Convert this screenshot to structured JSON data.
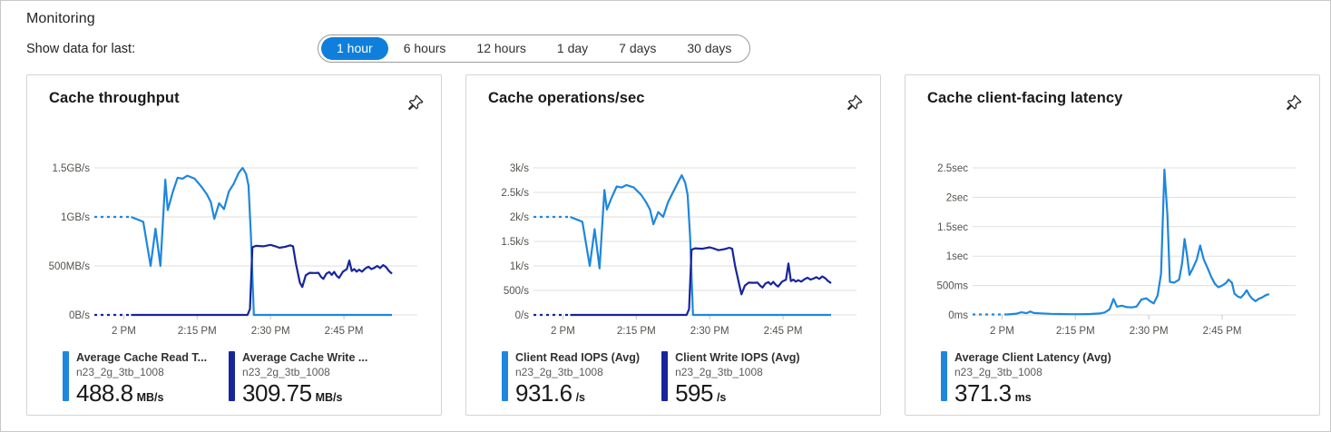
{
  "header": {
    "title": "Monitoring",
    "time_label": "Show data for last:"
  },
  "time_selector": {
    "options": [
      "1 hour",
      "6 hours",
      "12 hours",
      "1 day",
      "7 days",
      "30 days"
    ],
    "selected_index": 0
  },
  "colors": {
    "accent": "#0f7fdb",
    "series_light": "#1e87dd",
    "series_dark": "#17259c",
    "grid": "#e1dfdd",
    "tick": "#c8c6c4",
    "axis_text": "#55524e"
  },
  "resource_name": "n23_2g_3tb_1008",
  "chart_data": [
    {
      "type": "line",
      "title": "Cache throughput",
      "y_unit": "MB/s",
      "y_max": 1500,
      "x_range": [
        -6,
        60
      ],
      "y_ticks": [
        {
          "v": 1500,
          "label": "1.5GB/s"
        },
        {
          "v": 1000,
          "label": "1GB/s"
        },
        {
          "v": 500,
          "label": "500MB/s"
        },
        {
          "v": 0,
          "label": "0B/s"
        }
      ],
      "x_ticks": [
        {
          "t": 0,
          "label": "2 PM"
        },
        {
          "t": 15,
          "label": "2:15 PM"
        },
        {
          "t": 30,
          "label": "2:30 PM"
        },
        {
          "t": 45,
          "label": "2:45 PM"
        }
      ],
      "series": [
        {
          "name": "Average Cache Read T...",
          "color": "light",
          "dash_points": [
            [
              -6,
              1000
            ],
            [
              1.5,
              1000
            ]
          ],
          "points": [
            [
              1.5,
              1000
            ],
            [
              4,
              950
            ],
            [
              5.5,
              500
            ],
            [
              6.5,
              880
            ],
            [
              7.5,
              500
            ],
            [
              8.5,
              1380
            ],
            [
              9,
              1070
            ],
            [
              10,
              1250
            ],
            [
              11,
              1400
            ],
            [
              12,
              1390
            ],
            [
              13,
              1420
            ],
            [
              14.5,
              1390
            ],
            [
              16,
              1300
            ],
            [
              17,
              1230
            ],
            [
              17.8,
              1150
            ],
            [
              18.5,
              980
            ],
            [
              19.5,
              1140
            ],
            [
              20.5,
              1080
            ],
            [
              21.5,
              1260
            ],
            [
              22.5,
              1340
            ],
            [
              23.5,
              1450
            ],
            [
              24.3,
              1500
            ],
            [
              25,
              1440
            ],
            [
              25.5,
              1320
            ],
            [
              26,
              800
            ],
            [
              26.6,
              0
            ],
            [
              54.8,
              0
            ]
          ]
        },
        {
          "name": "Average Cache Write ...",
          "color": "dark",
          "dash_points": [
            [
              -6,
              0
            ],
            [
              1.5,
              0
            ]
          ],
          "points": [
            [
              1.5,
              0
            ],
            [
              25.3,
              0
            ],
            [
              25.8,
              60
            ],
            [
              26.3,
              690
            ],
            [
              27,
              705
            ],
            [
              28.5,
              700
            ],
            [
              30,
              715
            ],
            [
              31,
              700
            ],
            [
              31.8,
              685
            ],
            [
              33,
              695
            ],
            [
              34,
              710
            ],
            [
              34.6,
              700
            ],
            [
              35.2,
              520
            ],
            [
              36,
              330
            ],
            [
              36.5,
              285
            ],
            [
              37.2,
              405
            ],
            [
              38,
              430
            ],
            [
              39,
              428
            ],
            [
              39.8,
              430
            ],
            [
              40.3,
              390
            ],
            [
              40.8,
              368
            ],
            [
              41.4,
              420
            ],
            [
              42,
              438
            ],
            [
              42.5,
              408
            ],
            [
              43,
              440
            ],
            [
              43.5,
              400
            ],
            [
              44,
              378
            ],
            [
              44.8,
              442
            ],
            [
              45.6,
              468
            ],
            [
              46.1,
              555
            ],
            [
              46.6,
              448
            ],
            [
              47.1,
              468
            ],
            [
              47.6,
              442
            ],
            [
              48.1,
              462
            ],
            [
              48.7,
              442
            ],
            [
              49.4,
              475
            ],
            [
              50,
              492
            ],
            [
              50.6,
              468
            ],
            [
              51.2,
              480
            ],
            [
              51.8,
              500
            ],
            [
              52.4,
              478
            ],
            [
              53,
              508
            ],
            [
              53.6,
              488
            ],
            [
              54.2,
              448
            ],
            [
              54.8,
              420
            ]
          ]
        }
      ],
      "legend": [
        {
          "metric": "Average Cache Read T...",
          "resource": "n23_2g_3tb_1008",
          "value": "488.8",
          "unit": "MB/s",
          "color": "light"
        },
        {
          "metric": "Average Cache Write ...",
          "resource": "n23_2g_3tb_1008",
          "value": "309.75",
          "unit": "MB/s",
          "color": "dark"
        }
      ]
    },
    {
      "type": "line",
      "title": "Cache operations/sec",
      "y_unit": "/s",
      "y_max": 3000,
      "x_range": [
        -6,
        60
      ],
      "y_ticks": [
        {
          "v": 3000,
          "label": "3k/s"
        },
        {
          "v": 2500,
          "label": "2.5k/s"
        },
        {
          "v": 2000,
          "label": "2k/s"
        },
        {
          "v": 1500,
          "label": "1.5k/s"
        },
        {
          "v": 1000,
          "label": "1k/s"
        },
        {
          "v": 500,
          "label": "500/s"
        },
        {
          "v": 0,
          "label": "0/s"
        }
      ],
      "x_ticks": [
        {
          "t": 0,
          "label": "2 PM"
        },
        {
          "t": 15,
          "label": "2:15 PM"
        },
        {
          "t": 30,
          "label": "2:30 PM"
        },
        {
          "t": 45,
          "label": "2:45 PM"
        }
      ],
      "series": [
        {
          "name": "Client Read IOPS (Avg)",
          "color": "light",
          "dash_points": [
            [
              -6,
              2000
            ],
            [
              1.5,
              2000
            ]
          ],
          "points": [
            [
              1.5,
              2000
            ],
            [
              4,
              1900
            ],
            [
              5.5,
              1000
            ],
            [
              6.5,
              1750
            ],
            [
              7.5,
              950
            ],
            [
              8.5,
              2550
            ],
            [
              9,
              2150
            ],
            [
              10,
              2400
            ],
            [
              11,
              2620
            ],
            [
              12,
              2600
            ],
            [
              13,
              2650
            ],
            [
              14.5,
              2600
            ],
            [
              16,
              2450
            ],
            [
              17,
              2300
            ],
            [
              17.8,
              2150
            ],
            [
              18.5,
              1850
            ],
            [
              19.5,
              2100
            ],
            [
              20.5,
              2000
            ],
            [
              21.5,
              2300
            ],
            [
              22.5,
              2500
            ],
            [
              23.5,
              2700
            ],
            [
              24.3,
              2850
            ],
            [
              25,
              2700
            ],
            [
              25.5,
              2450
            ],
            [
              26,
              1600
            ],
            [
              26.6,
              0
            ],
            [
              54.8,
              0
            ]
          ]
        },
        {
          "name": "Client Write IOPS (Avg)",
          "color": "dark",
          "dash_points": [
            [
              -6,
              0
            ],
            [
              1.5,
              0
            ]
          ],
          "points": [
            [
              1.5,
              0
            ],
            [
              25.3,
              0
            ],
            [
              25.8,
              120
            ],
            [
              26.3,
              1330
            ],
            [
              27,
              1360
            ],
            [
              28.5,
              1350
            ],
            [
              30,
              1380
            ],
            [
              31,
              1350
            ],
            [
              31.8,
              1320
            ],
            [
              33,
              1340
            ],
            [
              34,
              1370
            ],
            [
              34.6,
              1350
            ],
            [
              35.2,
              1000
            ],
            [
              36,
              640
            ],
            [
              36.5,
              420
            ],
            [
              37.2,
              600
            ],
            [
              38,
              660
            ],
            [
              39,
              655
            ],
            [
              39.8,
              660
            ],
            [
              40.3,
              600
            ],
            [
              40.8,
              560
            ],
            [
              41.4,
              640
            ],
            [
              42,
              670
            ],
            [
              42.5,
              620
            ],
            [
              43,
              675
            ],
            [
              43.5,
              615
            ],
            [
              44,
              580
            ],
            [
              44.8,
              680
            ],
            [
              45.6,
              720
            ],
            [
              46.1,
              1050
            ],
            [
              46.6,
              690
            ],
            [
              47.1,
              720
            ],
            [
              47.6,
              680
            ],
            [
              48.1,
              710
            ],
            [
              48.7,
              680
            ],
            [
              49.4,
              730
            ],
            [
              50,
              760
            ],
            [
              50.6,
              720
            ],
            [
              51.2,
              740
            ],
            [
              51.8,
              770
            ],
            [
              52.4,
              735
            ],
            [
              53,
              785
            ],
            [
              53.6,
              750
            ],
            [
              54.2,
              690
            ],
            [
              54.8,
              650
            ]
          ]
        }
      ],
      "legend": [
        {
          "metric": "Client Read IOPS (Avg)",
          "resource": "n23_2g_3tb_1008",
          "value": "931.6",
          "unit": "/s",
          "color": "light"
        },
        {
          "metric": "Client Write IOPS (Avg)",
          "resource": "n23_2g_3tb_1008",
          "value": "595",
          "unit": "/s",
          "color": "dark"
        }
      ]
    },
    {
      "type": "line",
      "title": "Cache client-facing latency",
      "y_unit": "ms",
      "y_max": 2500,
      "x_range": [
        -6,
        60
      ],
      "y_ticks": [
        {
          "v": 2500,
          "label": "2.5sec"
        },
        {
          "v": 2000,
          "label": "2sec"
        },
        {
          "v": 1500,
          "label": "1.5sec"
        },
        {
          "v": 1000,
          "label": "1sec"
        },
        {
          "v": 500,
          "label": "500ms"
        },
        {
          "v": 0,
          "label": "0ms"
        }
      ],
      "x_ticks": [
        {
          "t": 0,
          "label": "2 PM"
        },
        {
          "t": 15,
          "label": "2:15 PM"
        },
        {
          "t": 30,
          "label": "2:30 PM"
        },
        {
          "t": 45,
          "label": "2:45 PM"
        }
      ],
      "series": [
        {
          "name": "Average Client Latency (Avg)",
          "color": "light",
          "dash_points": [
            [
              -6,
              8
            ],
            [
              1,
              8
            ]
          ],
          "points": [
            [
              1,
              8
            ],
            [
              3,
              22
            ],
            [
              4,
              45
            ],
            [
              5,
              30
            ],
            [
              5.8,
              58
            ],
            [
              6.5,
              32
            ],
            [
              8,
              26
            ],
            [
              10,
              18
            ],
            [
              12,
              15
            ],
            [
              14,
              12
            ],
            [
              16,
              12
            ],
            [
              18,
              16
            ],
            [
              20,
              24
            ],
            [
              21,
              42
            ],
            [
              22,
              95
            ],
            [
              22.8,
              272
            ],
            [
              23.5,
              140
            ],
            [
              24.5,
              158
            ],
            [
              25.5,
              132
            ],
            [
              26.5,
              128
            ],
            [
              27.5,
              142
            ],
            [
              28.5,
              262
            ],
            [
              29.5,
              282
            ],
            [
              30.3,
              232
            ],
            [
              31,
              196
            ],
            [
              31.8,
              330
            ],
            [
              32.5,
              700
            ],
            [
              33.2,
              2470
            ],
            [
              33.8,
              1700
            ],
            [
              34.3,
              562
            ],
            [
              35.2,
              548
            ],
            [
              36.2,
              600
            ],
            [
              36.8,
              880
            ],
            [
              37.3,
              1292
            ],
            [
              37.8,
              1020
            ],
            [
              38.3,
              680
            ],
            [
              39,
              792
            ],
            [
              39.8,
              940
            ],
            [
              40.5,
              1180
            ],
            [
              41.2,
              950
            ],
            [
              42,
              800
            ],
            [
              42.8,
              640
            ],
            [
              43.5,
              530
            ],
            [
              44.2,
              470
            ],
            [
              45,
              500
            ],
            [
              45.8,
              545
            ],
            [
              46.3,
              602
            ],
            [
              47,
              545
            ],
            [
              47.5,
              362
            ],
            [
              48.2,
              312
            ],
            [
              48.8,
              295
            ],
            [
              49.4,
              345
            ],
            [
              50,
              420
            ],
            [
              50.6,
              330
            ],
            [
              51.2,
              272
            ],
            [
              51.8,
              235
            ],
            [
              52.5,
              275
            ],
            [
              53.2,
              300
            ],
            [
              54,
              340
            ],
            [
              54.6,
              352
            ]
          ]
        }
      ],
      "legend": [
        {
          "metric": "Average Client Latency (Avg)",
          "resource": "n23_2g_3tb_1008",
          "value": "371.3",
          "unit": "ms",
          "color": "light"
        }
      ]
    }
  ]
}
